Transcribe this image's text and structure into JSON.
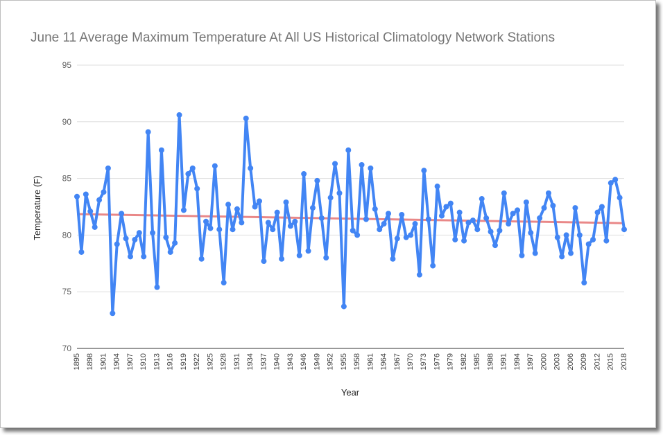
{
  "chart_data": {
    "type": "line",
    "title": "June 11 Average Maximum Temperature At All US Historical Climatology Network Stations",
    "xlabel": "Year",
    "ylabel": "Temperature (F)",
    "ylim": [
      70,
      95
    ],
    "yticks": [
      70,
      75,
      80,
      85,
      90,
      95
    ],
    "xlim": [
      1895,
      2018
    ],
    "xticks": [
      1895,
      1898,
      1901,
      1904,
      1907,
      1910,
      1913,
      1916,
      1919,
      1922,
      1925,
      1928,
      1931,
      1934,
      1937,
      1940,
      1943,
      1946,
      1949,
      1952,
      1955,
      1958,
      1961,
      1964,
      1967,
      1970,
      1973,
      1976,
      1979,
      1982,
      1985,
      1988,
      1991,
      1994,
      1997,
      2000,
      2003,
      2006,
      2009,
      2012,
      2015,
      2018
    ],
    "grid": true,
    "legend": "none",
    "series": [
      {
        "color": "#4285f4",
        "x": [
          1895,
          1896,
          1897,
          1898,
          1899,
          1900,
          1901,
          1902,
          1903,
          1904,
          1905,
          1906,
          1907,
          1908,
          1909,
          1910,
          1911,
          1912,
          1913,
          1914,
          1915,
          1916,
          1917,
          1918,
          1919,
          1920,
          1921,
          1922,
          1923,
          1924,
          1925,
          1926,
          1927,
          1928,
          1929,
          1930,
          1931,
          1932,
          1933,
          1934,
          1935,
          1936,
          1937,
          1938,
          1939,
          1940,
          1941,
          1942,
          1943,
          1944,
          1945,
          1946,
          1947,
          1948,
          1949,
          1950,
          1951,
          1952,
          1953,
          1954,
          1955,
          1956,
          1957,
          1958,
          1959,
          1960,
          1961,
          1962,
          1963,
          1964,
          1965,
          1966,
          1967,
          1968,
          1969,
          1970,
          1971,
          1972,
          1973,
          1974,
          1975,
          1976,
          1977,
          1978,
          1979,
          1980,
          1981,
          1982,
          1983,
          1984,
          1985,
          1986,
          1987,
          1988,
          1989,
          1990,
          1991,
          1992,
          1993,
          1994,
          1995,
          1996,
          1997,
          1998,
          1999,
          2000,
          2001,
          2002,
          2003,
          2004,
          2005,
          2006,
          2007,
          2008,
          2009,
          2010,
          2011,
          2012,
          2013,
          2014,
          2015,
          2016,
          2017,
          2018
        ],
        "y": [
          83.4,
          78.5,
          83.6,
          82.1,
          80.7,
          83.1,
          83.8,
          85.9,
          73.1,
          79.2,
          81.9,
          79.7,
          78.1,
          79.6,
          80.2,
          78.1,
          89.1,
          80.2,
          75.4,
          87.5,
          79.8,
          78.5,
          79.3,
          90.6,
          82.2,
          85.4,
          85.9,
          84.1,
          77.9,
          81.2,
          80.6,
          86.1,
          80.5,
          75.8,
          82.7,
          80.5,
          82.3,
          81.1,
          90.3,
          85.9,
          82.5,
          83.0,
          77.7,
          81.1,
          80.5,
          82.0,
          77.9,
          82.9,
          80.8,
          81.2,
          78.2,
          85.4,
          78.6,
          82.4,
          84.8,
          81.5,
          78.0,
          83.3,
          86.3,
          83.7,
          73.7,
          87.5,
          80.4,
          80.0,
          86.2,
          81.4,
          85.9,
          82.3,
          80.5,
          81.0,
          81.9,
          77.9,
          79.7,
          81.8,
          79.8,
          80.0,
          81.0,
          76.5,
          85.7,
          81.4,
          77.3,
          84.3,
          81.7,
          82.5,
          82.8,
          79.6,
          82.0,
          79.5,
          81.1,
          81.3,
          80.5,
          83.2,
          81.5,
          80.3,
          79.1,
          80.4,
          83.7,
          81.0,
          81.9,
          82.2,
          78.2,
          82.9,
          80.2,
          78.4,
          81.5,
          82.4,
          83.7,
          82.6,
          79.8,
          78.1,
          80.0,
          78.4,
          82.4,
          80.0,
          75.8,
          79.2,
          79.6,
          82.0,
          82.5,
          79.5,
          84.6,
          84.9,
          83.3,
          80.5
        ]
      },
      {
        "type": "trendline",
        "color": "#e57373",
        "x": [
          1895,
          2018
        ],
        "y": [
          81.85,
          81.05
        ]
      }
    ]
  }
}
